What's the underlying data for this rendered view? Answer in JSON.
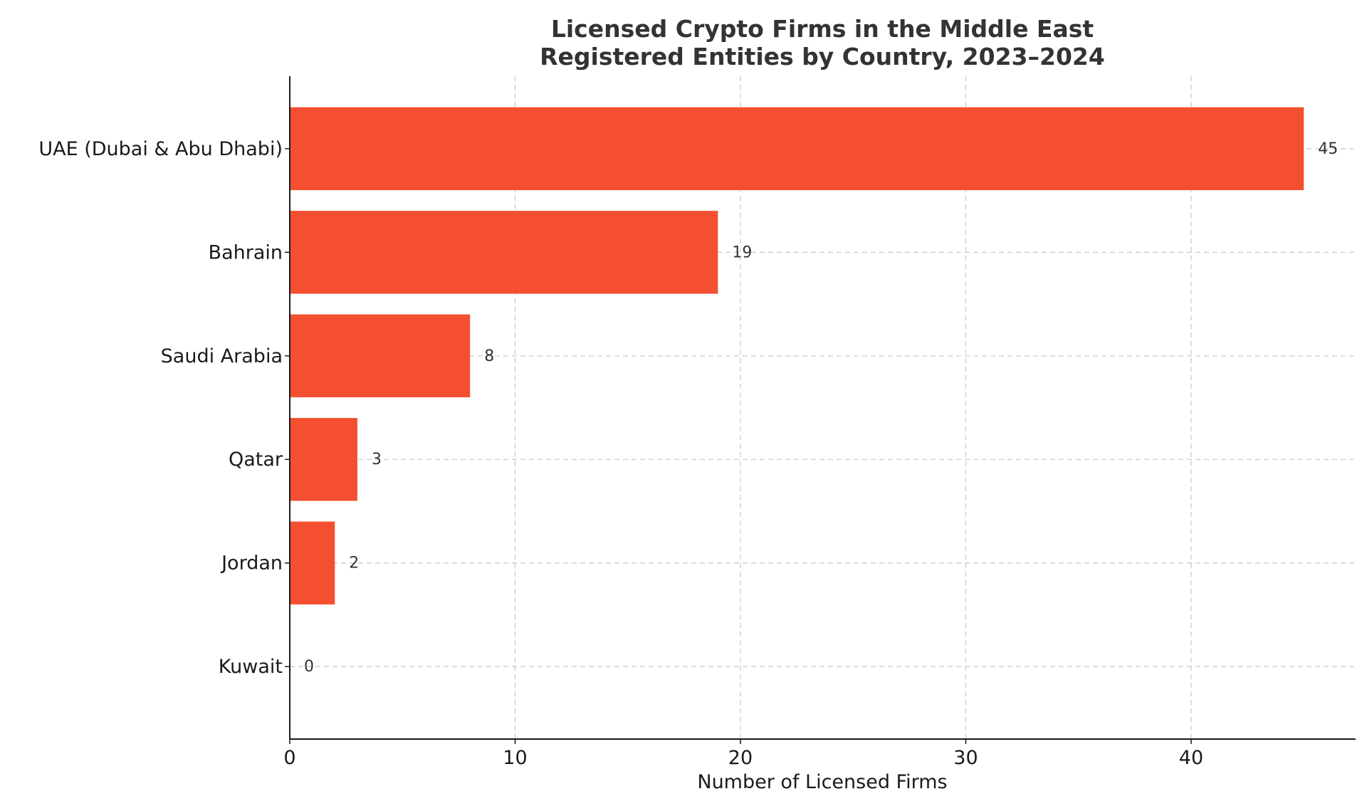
{
  "chart_data": {
    "type": "bar",
    "orientation": "horizontal",
    "title_lines": [
      "Licensed Crypto Firms in the Middle East",
      "Registered Entities by Country, 2023–2024"
    ],
    "xlabel": "Number of Licensed Firms",
    "ylabel": "",
    "categories": [
      "UAE (Dubai & Abu Dhabi)",
      "Bahrain",
      "Saudi Arabia",
      "Qatar",
      "Jordan",
      "Kuwait"
    ],
    "values": [
      45,
      19,
      8,
      3,
      2,
      0
    ],
    "value_labels": [
      "45",
      "19",
      "8",
      "3",
      "2",
      "0"
    ],
    "xlim": [
      0,
      47.3
    ],
    "xticks": [
      0,
      10,
      20,
      30,
      40
    ],
    "xtick_labels": [
      "0",
      "10",
      "20",
      "30",
      "40"
    ],
    "grid": true,
    "legend": "none",
    "bar_color": "#f44f30"
  }
}
